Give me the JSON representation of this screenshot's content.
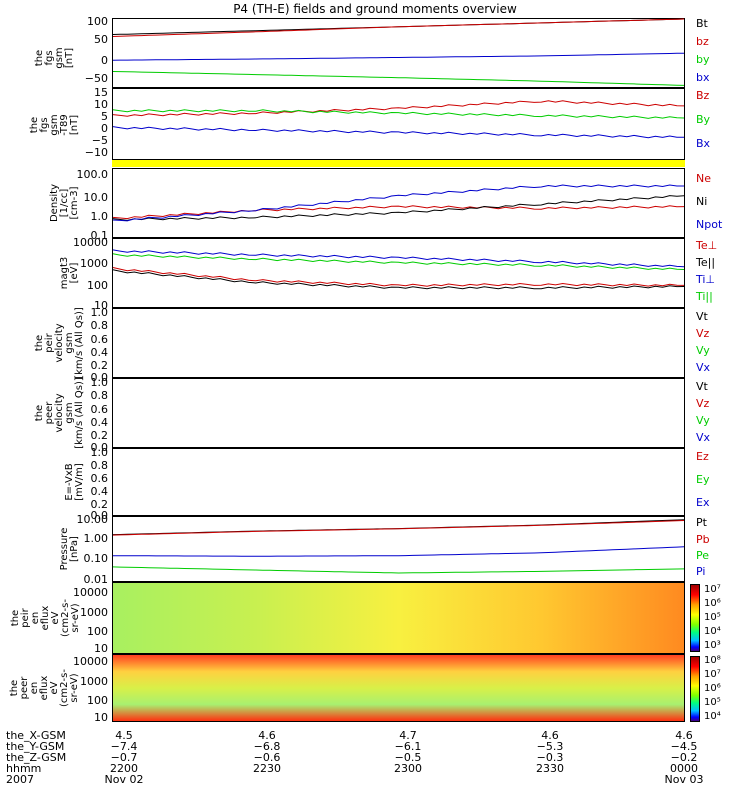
{
  "title": "P4 (TH-E) fields and ground moments overview",
  "panels": {
    "fgs": {
      "ylabel": [
        "the",
        "fgs",
        "gsm",
        "[nT]"
      ],
      "ticks": [
        "100",
        "50",
        "0",
        "−50"
      ],
      "legend": [
        {
          "label": "Bt",
          "color": "#000000"
        },
        {
          "label": "bz",
          "color": "#cc0000"
        },
        {
          "label": "by",
          "color": "#00cc00"
        },
        {
          "label": "bx",
          "color": "#0000cc"
        }
      ]
    },
    "fgs_dsl": {
      "ylabel": [
        "the",
        "fgs",
        "gsm",
        "-T89",
        "[nT]"
      ],
      "ticks": [
        "15",
        "10",
        "5",
        "0",
        "−5",
        "−10"
      ],
      "legend": [
        {
          "label": "Bz",
          "color": "#cc0000"
        },
        {
          "label": "By",
          "color": "#00cc00"
        },
        {
          "label": "Bx",
          "color": "#0000cc"
        }
      ]
    },
    "density": {
      "ylabel": [
        "Density",
        "[1/cc]",
        "[cm-3]"
      ],
      "ticks": [
        "100.0",
        "10.0",
        "1.0",
        "0.1"
      ],
      "legend": [
        {
          "label": "Ne",
          "color": "#cc0000"
        },
        {
          "label": "Ni",
          "color": "#000000"
        },
        {
          "label": "Npot",
          "color": "#0000cc"
        }
      ]
    },
    "temp": {
      "ylabel": [
        "magt3",
        "[eV]"
      ],
      "ticks": [
        "10000",
        "1000",
        "100",
        "10"
      ],
      "legend": [
        {
          "label": "Te⊥",
          "color": "#cc0000"
        },
        {
          "label": "Te||",
          "color": "#000000"
        },
        {
          "label": "Ti⊥",
          "color": "#0000cc"
        },
        {
          "label": "Ti||",
          "color": "#00cc00"
        }
      ]
    },
    "peir_vel": {
      "ylabel": [
        "the",
        "peir",
        "velocity",
        "gsm",
        "[km/s (All Qs)]"
      ],
      "ticks": [
        "1.0",
        "0.8",
        "0.6",
        "0.4",
        "0.2",
        "0.0"
      ],
      "legend": [
        {
          "label": "Vt",
          "color": "#000000"
        },
        {
          "label": "Vz",
          "color": "#cc0000"
        },
        {
          "label": "Vy",
          "color": "#00cc00"
        },
        {
          "label": "Vx",
          "color": "#0000cc"
        }
      ]
    },
    "peer_vel": {
      "ylabel": [
        "the",
        "peer",
        "velocity",
        "gsm",
        "[km/s (All Qs)]"
      ],
      "ticks": [
        "1.0",
        "0.8",
        "0.6",
        "0.4",
        "0.2",
        "0.0"
      ],
      "legend": [
        {
          "label": "Vt",
          "color": "#000000"
        },
        {
          "label": "Vz",
          "color": "#cc0000"
        },
        {
          "label": "Vy",
          "color": "#00cc00"
        },
        {
          "label": "Vx",
          "color": "#0000cc"
        }
      ]
    },
    "efield": {
      "ylabel": [
        "E=-VxB",
        "[mV/m]"
      ],
      "ticks": [
        "1.0",
        "0.8",
        "0.6",
        "0.4",
        "0.2",
        "0.0"
      ],
      "legend": [
        {
          "label": "Ez",
          "color": "#cc0000"
        },
        {
          "label": "Ey",
          "color": "#00cc00"
        },
        {
          "label": "Ex",
          "color": "#0000cc"
        }
      ]
    },
    "pressure": {
      "ylabel": [
        "Pressure",
        "[nPa]"
      ],
      "ticks": [
        "10.00",
        "1.00",
        "0.10",
        "0.01"
      ],
      "legend": [
        {
          "label": "Pt",
          "color": "#000000"
        },
        {
          "label": "Pb",
          "color": "#cc0000"
        },
        {
          "label": "Pe",
          "color": "#00cc00"
        },
        {
          "label": "Pi",
          "color": "#0000cc"
        }
      ]
    },
    "peir_spec": {
      "ylabel": [
        "the",
        "peir",
        "en",
        "eflux",
        "eV",
        "(cm2-s-",
        "sr-eV)"
      ],
      "ticks": [
        "10000",
        "1000",
        "100",
        "10"
      ],
      "cbar_labels": [
        "10⁷",
        "10⁶",
        "10⁵",
        "10⁴",
        "10³"
      ]
    },
    "peer_spec": {
      "ylabel": [
        "the",
        "peer",
        "en",
        "eflux",
        "eV",
        "(cm2-s-",
        "sr-eV)"
      ],
      "ticks": [
        "10000",
        "1000",
        "100",
        "10"
      ],
      "cbar_labels": [
        "10⁸",
        "10⁷",
        "10⁶",
        "10⁵",
        "10⁴"
      ]
    }
  },
  "footer": {
    "rows": [
      "the_X-GSM",
      "the_Y-GSM",
      "the_Z-GSM",
      "hhmm",
      "2007"
    ],
    "columns": [
      [
        "4.5",
        "−7.4",
        "−0.7",
        "2200",
        "Nov 02"
      ],
      [
        "4.6",
        "−6.8",
        "−0.6",
        "2230",
        ""
      ],
      [
        "4.7",
        "−6.1",
        "−0.5",
        "2300",
        ""
      ],
      [
        "4.6",
        "−5.3",
        "−0.3",
        "2330",
        ""
      ],
      [
        "4.6",
        "−4.5",
        "−0.2",
        "0000",
        "Nov 03"
      ]
    ]
  },
  "chart_data": [
    {
      "type": "line",
      "title": "fgs gsm",
      "xlabel": "hhmm",
      "ylabel": "[nT]",
      "x": [
        "2200",
        "2230",
        "2300",
        "2330",
        "0000"
      ],
      "ylim": [
        -70,
        105
      ],
      "series": [
        {
          "name": "Bt",
          "values": [
            65,
            75,
            85,
            95,
            105
          ]
        },
        {
          "name": "bz",
          "values": [
            60,
            72,
            85,
            95,
            105
          ]
        },
        {
          "name": "by",
          "values": [
            -1,
            2,
            6,
            10,
            17
          ]
        },
        {
          "name": "bx",
          "values": [
            -30,
            -38,
            -46,
            -55,
            -66
          ]
        }
      ]
    },
    {
      "type": "line",
      "title": "fgs gsm -T89",
      "ylim": [
        -14,
        15
      ],
      "x": [
        "2200",
        "2230",
        "2300",
        "2330",
        "0000"
      ],
      "series": [
        {
          "name": "Bz",
          "values": [
            4,
            5,
            7,
            10,
            8
          ]
        },
        {
          "name": "By",
          "values": [
            6,
            6,
            5,
            4,
            3
          ]
        },
        {
          "name": "Bx",
          "values": [
            -1,
            -2,
            -3,
            -4,
            -5
          ]
        }
      ]
    },
    {
      "type": "line",
      "title": "Density",
      "yscale": "log",
      "ylim": [
        0.1,
        200
      ],
      "x": [
        "2200",
        "2230",
        "2300",
        "2330",
        "0000"
      ],
      "series": [
        {
          "name": "Ne",
          "values": [
            0.8,
            2,
            3,
            2.5,
            3
          ]
        },
        {
          "name": "Ni",
          "values": [
            0.7,
            0.9,
            1.5,
            4,
            10
          ]
        },
        {
          "name": "Npot",
          "values": [
            0.6,
            2,
            10,
            30,
            30
          ]
        }
      ]
    },
    {
      "type": "line",
      "title": "magt3",
      "yscale": "log",
      "ylim": [
        10,
        10000
      ],
      "x": [
        "2200",
        "2230",
        "2300",
        "2330",
        "0000"
      ],
      "series": [
        {
          "name": "Te⊥",
          "values": [
            500,
            150,
            90,
            100,
            90
          ]
        },
        {
          "name": "Te||",
          "values": [
            400,
            120,
            70,
            70,
            80
          ]
        },
        {
          "name": "Ti⊥",
          "values": [
            3000,
            2000,
            1500,
            1000,
            600
          ]
        },
        {
          "name": "Ti||",
          "values": [
            2000,
            1300,
            900,
            700,
            450
          ]
        }
      ]
    },
    {
      "type": "line",
      "title": "Pressure",
      "yscale": "log",
      "ylim": [
        0.01,
        15
      ],
      "x": [
        "2200",
        "2230",
        "2300",
        "2330",
        "0000"
      ],
      "series": [
        {
          "name": "Pt",
          "values": [
            2,
            3,
            4,
            6,
            11
          ]
        },
        {
          "name": "Pb",
          "values": [
            1.9,
            2.9,
            3.9,
            5.8,
            10
          ]
        },
        {
          "name": "Pe",
          "values": [
            0.05,
            0.035,
            0.025,
            0.03,
            0.04
          ]
        },
        {
          "name": "Pi",
          "values": [
            0.18,
            0.17,
            0.18,
            0.25,
            0.5
          ]
        }
      ]
    }
  ]
}
